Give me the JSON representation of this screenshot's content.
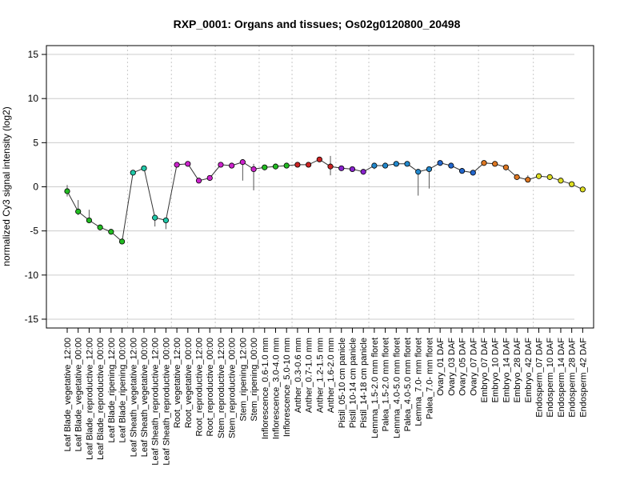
{
  "chart_data": {
    "type": "line",
    "title": "RXP_0001: Organs and tissues; Os02g0120800_20498",
    "xlabel": "",
    "ylabel": "normalized Cy3 signal intensity (log2)",
    "ylim": [
      -16,
      16
    ],
    "yticks": [
      -15,
      -10,
      -5,
      0,
      5,
      10,
      15
    ],
    "grid": true,
    "categories": [
      "Leaf Blade_vegetative_12:00",
      "Leaf Blade_vegetative_00:00",
      "Leaf Blade_reproductive_12:00",
      "Leaf Blade_reproductive_00:00",
      "Leaf Blade_ripening_12:00",
      "Leaf Blade_ripening_00:00",
      "Leaf Sheath_vegetative_12:00",
      "Leaf Sheath_vegetative_00:00",
      "Leaf Sheath_reproductive_12:00",
      "Leaf Sheath_reproductive_00:00",
      "Root_vegetative_12:00",
      "Root_vegetative_00:00",
      "Root_reproductive_12:00",
      "Root_reproductive_00:00",
      "Stem_reproductive_12:00",
      "Stem_reproductive_00:00",
      "Stem_ripening_12:00",
      "Stem_ripening_00:00",
      "Inflorescence_0.6-1.0 mm",
      "Inflorescence_3.0-4.0 mm",
      "Inflorescence_5.0-10 mm",
      "Anther_0.3-0.6 mm",
      "Anther_0.7-1.0 mm",
      "Anther_1.2-1.5 mm",
      "Anther_1.6-2.0 mm",
      "Pistil_05-10 cm panicle",
      "Pistil_10-14 cm panicle",
      "Pistil_14-18 cm panicle",
      "Lemma_1.5-2.0 mm floret",
      "Palea_1.5-2.0 mm floret",
      "Lemma_4.0-5.0 mm floret",
      "Palea_4.0-5.0 mm floret",
      "Lemma_7.0- mm floret",
      "Palea_7.0- mm floret",
      "Ovary_01 DAF",
      "Ovary_03 DAF",
      "Ovary_05 DAF",
      "Ovary_07 DAF",
      "Embryo_07 DAF",
      "Embryo_10 DAF",
      "Embryo_14 DAF",
      "Embryo_28 DAF",
      "Embryo_42 DAF",
      "Endosperm_07 DAF",
      "Endosperm_10 DAF",
      "Endosperm_14 DAF",
      "Endosperm_28 DAF",
      "Endosperm_42 DAF"
    ],
    "values": [
      -0.5,
      -2.8,
      -3.8,
      -4.6,
      -5.1,
      -6.2,
      1.6,
      2.1,
      -3.5,
      -3.8,
      2.5,
      2.6,
      0.7,
      1.0,
      2.5,
      2.4,
      2.8,
      2.0,
      2.2,
      2.3,
      2.4,
      2.5,
      2.5,
      3.1,
      2.3,
      2.1,
      2.0,
      1.7,
      2.4,
      2.4,
      2.6,
      2.6,
      1.7,
      2.0,
      2.7,
      2.4,
      1.8,
      1.6,
      2.7,
      2.6,
      2.2,
      1.1,
      0.8,
      1.2,
      1.1,
      0.7,
      0.3,
      -0.3
    ],
    "error_low": [
      -1.1,
      -3.2,
      -4.1,
      -4.8,
      -5.3,
      -6.5,
      1.4,
      1.9,
      -4.5,
      -4.8,
      2.3,
      2.3,
      0.4,
      0.8,
      2.3,
      2.1,
      0.7,
      -0.4,
      2.0,
      2.1,
      2.2,
      2.3,
      2.3,
      2.9,
      1.3,
      1.9,
      1.8,
      1.4,
      2.0,
      2.1,
      2.4,
      2.4,
      -1.0,
      -0.2,
      2.5,
      2.2,
      1.5,
      1.3,
      2.5,
      2.4,
      1.9,
      0.9,
      0.5,
      1.0,
      0.8,
      0.5,
      0.0,
      -0.5
    ],
    "error_high": [
      0.2,
      -1.5,
      -2.6,
      -4.4,
      -4.9,
      -6.0,
      1.8,
      2.3,
      -3.2,
      -3.5,
      2.7,
      2.9,
      1.0,
      1.3,
      2.8,
      2.6,
      3.0,
      2.6,
      2.4,
      2.5,
      2.6,
      2.7,
      2.7,
      3.3,
      3.5,
      2.3,
      2.2,
      1.9,
      2.7,
      2.7,
      2.8,
      2.8,
      2.0,
      2.3,
      2.9,
      2.6,
      2.1,
      1.9,
      2.9,
      2.8,
      2.5,
      1.3,
      1.3,
      1.4,
      1.4,
      0.9,
      0.5,
      -0.1
    ],
    "point_colors": [
      "#22bb22",
      "#22bb22",
      "#22bb22",
      "#22bb22",
      "#22bb22",
      "#22bb22",
      "#20c8a8",
      "#20c8a8",
      "#20c8a8",
      "#20c8a8",
      "#cc22cc",
      "#cc22cc",
      "#cc22cc",
      "#cc22cc",
      "#cc22cc",
      "#cc22cc",
      "#cc22cc",
      "#cc22cc",
      "#22bb22",
      "#22bb22",
      "#22bb22",
      "#cc2222",
      "#cc2222",
      "#cc2222",
      "#cc2222",
      "#8822cc",
      "#8822cc",
      "#8822cc",
      "#2288cc",
      "#2288cc",
      "#2288cc",
      "#2288cc",
      "#2288cc",
      "#2288cc",
      "#2266cc",
      "#2266cc",
      "#2266cc",
      "#2266cc",
      "#dd7722",
      "#dd7722",
      "#dd7722",
      "#dd7722",
      "#dd7722",
      "#dddd22",
      "#dddd22",
      "#dddd22",
      "#dddd22",
      "#dddd22"
    ],
    "vertical_separators_after": [
      5,
      9,
      13,
      17,
      20,
      24,
      27,
      33,
      37,
      42
    ]
  }
}
